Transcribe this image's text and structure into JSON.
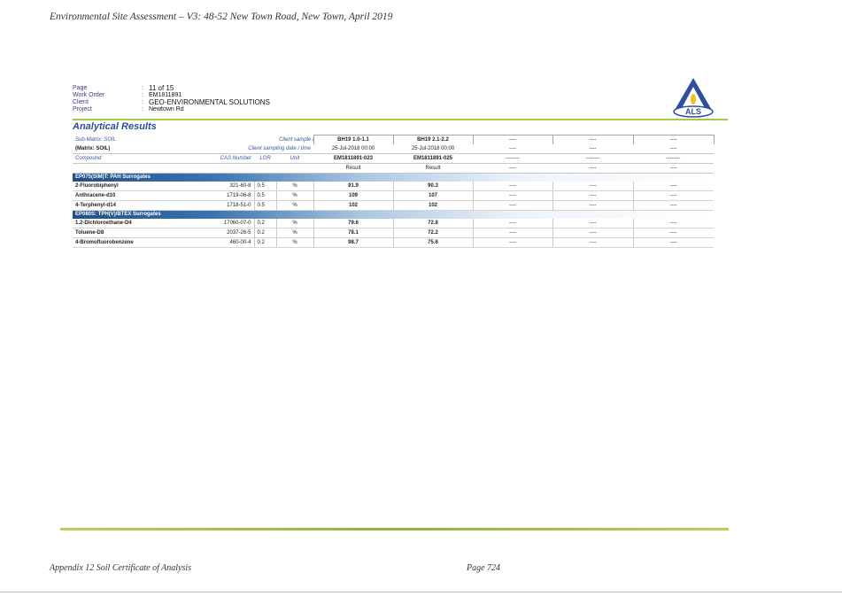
{
  "page_header": "Environmental Site Assessment – V3: 48-52 New Town Road, New Town, April 2019",
  "info": [
    {
      "key": "Page",
      "value": "11 of 15"
    },
    {
      "key": "Work Order",
      "value": "EM1811891"
    },
    {
      "key": "Client",
      "value": "GEO-ENVIRONMENTAL SOLUTIONS"
    },
    {
      "key": "Project",
      "value": "Newtown Rd"
    }
  ],
  "logo_text": "ALS",
  "colors": {
    "green_rule": "#a7c84a",
    "section_blue": "#1f4f86",
    "title_blue": "#2b4f9a"
  },
  "title": "Analytical Results",
  "matrix": {
    "sub": "Sub-Matrix: SOIL",
    "main": "(Matrix: SOIL)"
  },
  "labels": {
    "client_sample_id": "Client sample ID",
    "client_sampling": "Client sampling date / time",
    "compound": "Compound",
    "cas": "CAS Number",
    "lor": "LOR",
    "unit": "Unit"
  },
  "samples": [
    {
      "id": "BH19 1.0-1.1",
      "date": "25-Jul-2018 00:00",
      "lab": "EM1811891-023",
      "result": "Result"
    },
    {
      "id": "BH19 2.1-2.2",
      "date": "25-Jul-2018 00:00",
      "lab": "EM1811891-025",
      "result": "Result"
    },
    {
      "id": "----",
      "date": "----",
      "lab": "--------",
      "result": "----"
    },
    {
      "id": "----",
      "date": "----",
      "lab": "--------",
      "result": "----"
    },
    {
      "id": "----",
      "date": "----",
      "lab": "--------",
      "result": "----"
    }
  ],
  "sections": [
    {
      "name": "EP075(SIM)T: PAH Surrogates",
      "rows": [
        {
          "compound": "2-Fluorobiphenyl",
          "cas": "321-60-8",
          "lor": "0.5",
          "unit": "%",
          "v1": "91.9",
          "v2": "90.3",
          "v3": "----",
          "v4": "----",
          "v5": "----"
        },
        {
          "compound": "Anthracene-d10",
          "cas": "1719-06-8",
          "lor": "0.5",
          "unit": "%",
          "v1": "109",
          "v2": "107",
          "v3": "----",
          "v4": "----",
          "v5": "----"
        },
        {
          "compound": "4-Terphenyl-d14",
          "cas": "1718-51-0",
          "lor": "0.5",
          "unit": "%",
          "v1": "102",
          "v2": "102",
          "v3": "----",
          "v4": "----",
          "v5": "----"
        }
      ]
    },
    {
      "name": "EP080S: TPH(V)/BTEX Surrogates",
      "rows": [
        {
          "compound": "1.2-Dichloroethane-D4",
          "cas": "17060-07-0",
          "lor": "0.2",
          "unit": "%",
          "v1": "79.6",
          "v2": "72.8",
          "v3": "----",
          "v4": "----",
          "v5": "----"
        },
        {
          "compound": "Toluene-D8",
          "cas": "2037-26-5",
          "lor": "0.2",
          "unit": "%",
          "v1": "78.1",
          "v2": "72.2",
          "v3": "----",
          "v4": "----",
          "v5": "----"
        },
        {
          "compound": "4-Bromofluorobenzene",
          "cas": "460-00-4",
          "lor": "0.2",
          "unit": "%",
          "v1": "98.7",
          "v2": "75.6",
          "v3": "----",
          "v4": "----",
          "v5": "----"
        }
      ]
    }
  ],
  "footer_left": "Appendix 12 Soil Certificate of Analysis",
  "footer_right": "Page 724"
}
